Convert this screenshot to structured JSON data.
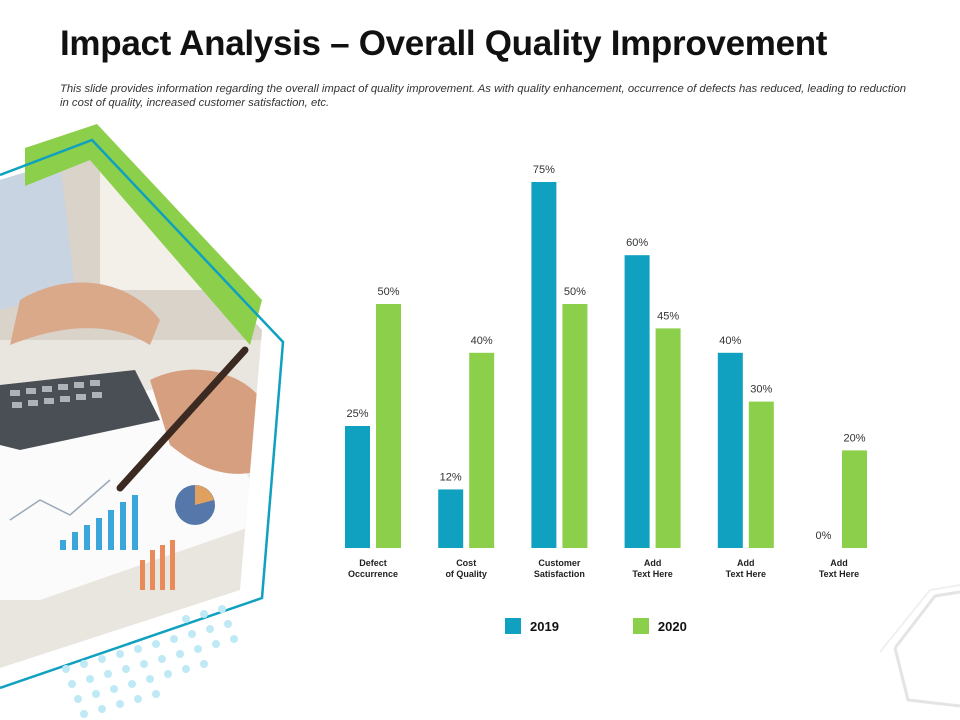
{
  "title": "Impact Analysis – Overall Quality Improvement",
  "subtitle": "This slide provides information regarding the overall impact of quality improvement. As with quality enhancement, occurrence of defects has reduced, leading to reduction in cost of quality, increased customer satisfaction, etc.",
  "colors": {
    "teal": "#0fa1bf",
    "green": "#8ccf4a",
    "dots": "#bfeaf5"
  },
  "chart_data": {
    "type": "bar",
    "categories": [
      "Defect\nOccurrence",
      "Cost\nof Quality",
      "Customer\nSatisfaction",
      "Add\nText Here",
      "Add\nText Here",
      "Add\nText Here"
    ],
    "series": [
      {
        "name": "2019",
        "values": [
          25,
          12,
          75,
          60,
          40,
          0
        ],
        "labels": [
          "25%",
          "12%",
          "75%",
          "60%",
          "40%",
          "0%"
        ]
      },
      {
        "name": "2020",
        "values": [
          50,
          40,
          50,
          45,
          30,
          20
        ],
        "labels": [
          "50%",
          "40%",
          "50%",
          "45%",
          "30%",
          "20%"
        ]
      }
    ],
    "ylim": [
      0,
      100
    ],
    "grid": false,
    "legend": "bottom"
  }
}
